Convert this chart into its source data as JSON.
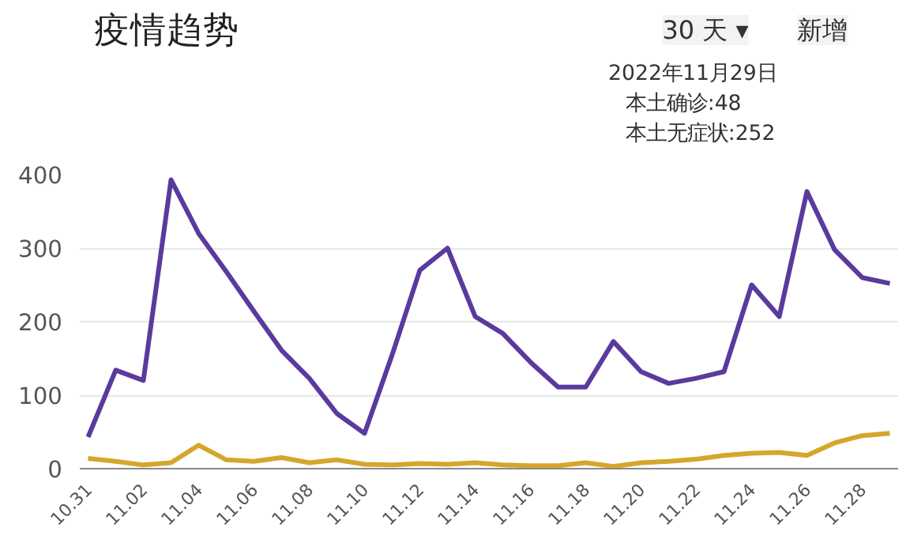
{
  "chart_data": {
    "type": "line",
    "title": "疫情趋势",
    "annotations": [
      "30 天 ▾",
      "新增",
      "2022年11月29日",
      "本土确诊:48",
      "本土无症状:252"
    ],
    "categories": [
      "10.31",
      null,
      "11.02",
      null,
      "11.04",
      null,
      "11.06",
      null,
      "11.08",
      null,
      "11.10",
      null,
      "11.12",
      null,
      "11.14",
      null,
      "11.16",
      null,
      "11.18",
      null,
      "11.20",
      null,
      "11.22",
      null,
      "11.24",
      null,
      "11.26",
      null,
      "11.28",
      null
    ],
    "series": [
      {
        "color": "#d4a72c",
        "values": [
          14,
          10,
          5,
          8,
          32,
          12,
          10,
          15,
          8,
          12,
          6,
          5,
          7,
          6,
          8,
          5,
          4,
          4,
          8,
          3,
          8,
          10,
          13,
          18,
          21,
          22,
          18,
          35,
          45,
          48
        ]
      },
      {
        "color": "#5b3a9e",
        "values": [
          43,
          134,
          120,
          393,
          320,
          268,
          214,
          161,
          123,
          75,
          48,
          155,
          270,
          300,
          207,
          184,
          145,
          111,
          111,
          173,
          132,
          116,
          123,
          132,
          250,
          207,
          377,
          298,
          260,
          252
        ]
      }
    ],
    "ylim": [
      0,
      400
    ],
    "yticks": [
      0,
      100,
      200,
      300,
      400
    ],
    "grid": "y",
    "marker": "none",
    "line_style": "solid"
  }
}
